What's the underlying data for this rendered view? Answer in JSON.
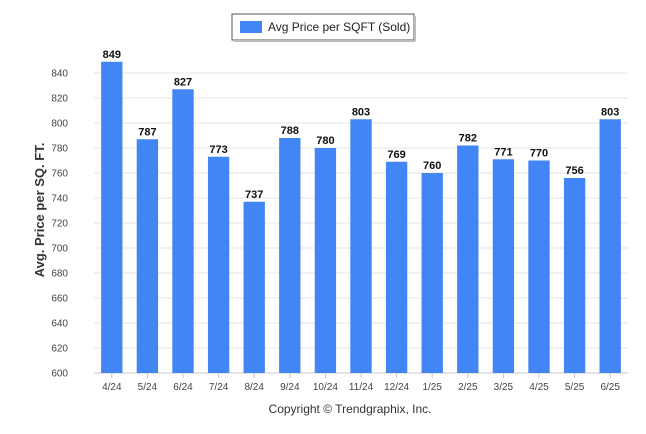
{
  "chart_data": {
    "type": "bar",
    "categories": [
      "4/24",
      "5/24",
      "6/24",
      "7/24",
      "8/24",
      "9/24",
      "10/24",
      "11/24",
      "12/24",
      "1/25",
      "2/25",
      "3/25",
      "4/25",
      "5/25",
      "6/25"
    ],
    "series": [
      {
        "name": "Avg Price per SQFT (Sold)",
        "values": [
          849,
          787,
          827,
          773,
          737,
          788,
          780,
          803,
          769,
          760,
          782,
          771,
          770,
          756,
          803
        ],
        "color": "#4285f4"
      }
    ],
    "data_labels": [
      "849",
      "787",
      "827",
      "773",
      "737",
      "788",
      "780",
      "803",
      "769",
      "760",
      "782",
      "771",
      "770",
      "756",
      "803"
    ],
    "ylabel": "Avg. Price per SQ. FT.",
    "xlabel": "",
    "ylim": [
      600,
      860
    ],
    "yticks": [
      600,
      620,
      640,
      660,
      680,
      700,
      720,
      740,
      760,
      780,
      800,
      820,
      840
    ],
    "grid": true,
    "legend": {
      "position": "top-center",
      "entries": [
        "Avg Price per SQFT (Sold)"
      ]
    },
    "credit": "Copyright © Trendgraphix, Inc."
  }
}
